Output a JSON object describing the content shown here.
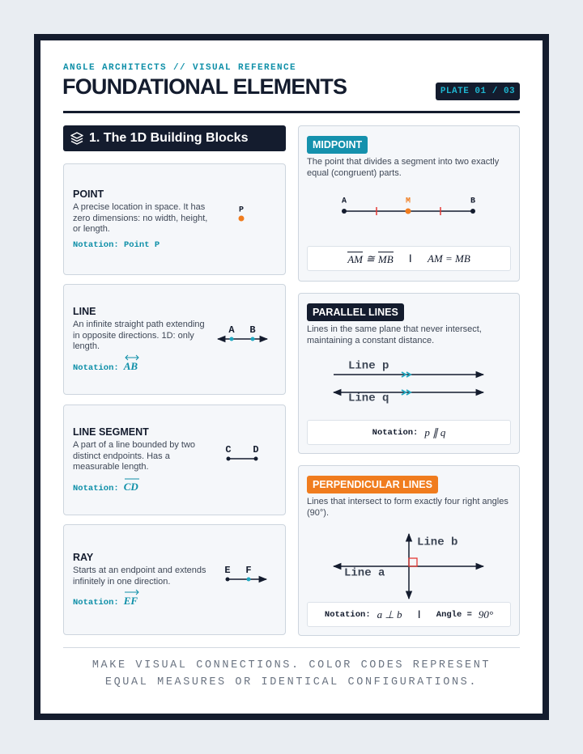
{
  "header": {
    "kicker": "ANGLE ARCHITECTS // VISUAL REFERENCE",
    "title": "FOUNDATIONAL ELEMENTS",
    "plate": "PLATE 01 / 03"
  },
  "section": {
    "title": "1. The 1D Building Blocks"
  },
  "cards": [
    {
      "title": "POINT",
      "description": "A precise location in space. It has zero dimensions: no width, height, or length.",
      "notation_label": "Notation: Point P",
      "points": [
        "P"
      ]
    },
    {
      "title": "LINE",
      "description": "An infinite straight path extending in opposite directions. 1D: only length.",
      "notation_label": "Notation:",
      "notation": "AB",
      "points": [
        "A",
        "B"
      ]
    },
    {
      "title": "LINE SEGMENT",
      "description": "A part of a line bounded by two distinct endpoints. Has a measurable length.",
      "notation_label": "Notation:",
      "notation": "CD",
      "points": [
        "C",
        "D"
      ]
    },
    {
      "title": "RAY",
      "description": "Starts at an endpoint and extends infinitely in one direction.",
      "notation_label": "Notation:",
      "notation": "EF",
      "points": [
        "E",
        "F"
      ]
    }
  ],
  "midpoint": {
    "tag": "MIDPOINT",
    "description": "The point that divides a segment into two exactly equal (congruent) parts.",
    "points": [
      "A",
      "M",
      "B"
    ],
    "notation": {
      "seg1": "AM",
      "op": "≅",
      "seg2": "MB",
      "sep": "|",
      "eq": "AM = MB"
    }
  },
  "parallel": {
    "tag": "PARALLEL LINES",
    "description": "Lines in the same plane that never intersect, maintaining a constant distance.",
    "lines": [
      "Line p",
      "Line q"
    ],
    "notation_label": "Notation:",
    "notation": "p ∥ q"
  },
  "perpendicular": {
    "tag": "PERPENDICULAR LINES",
    "description": "Lines that intersect to form exactly four right angles (90°).",
    "lines": [
      "Line b",
      "Line a"
    ],
    "notation_label": "Notation:",
    "notation": "a ⊥ b",
    "sep": "|",
    "angle_label": "Angle =",
    "angle": "90°"
  },
  "footer": {
    "text": "MAKE VISUAL CONNECTIONS. COLOR CODES REPRESENT EQUAL MEASURES OR IDENTICAL CONFIGURATIONS."
  }
}
